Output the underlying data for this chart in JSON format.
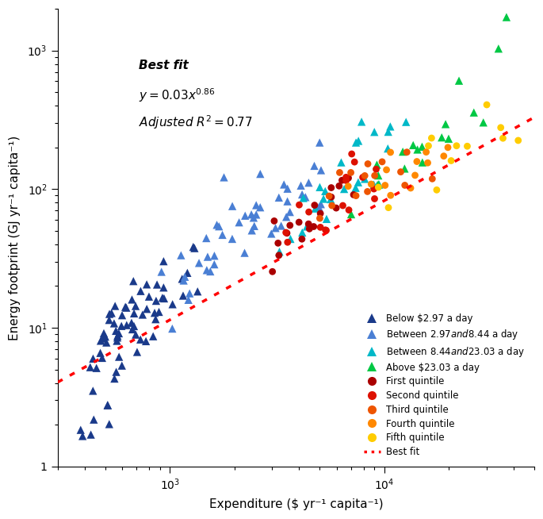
{
  "xlabel": "Expenditure ($ yr⁻¹ capita⁻¹)",
  "ylabel": "Energy footprint (GJ yr⁻¹ capita⁻¹)",
  "xlim": [
    300,
    50000
  ],
  "ylim": [
    1,
    2000
  ],
  "fit_a": 0.03,
  "fit_b": 0.86,
  "categories": {
    "dark_blue": {
      "label": "Below $2.97 a day",
      "color": "#1a3a8a",
      "marker": "^",
      "x": [
        370,
        390,
        410,
        430,
        440,
        450,
        460,
        470,
        480,
        490,
        500,
        510,
        520,
        530,
        535,
        540,
        545,
        550,
        555,
        560,
        565,
        570,
        575,
        580,
        585,
        590,
        595,
        600,
        610,
        615,
        620,
        625,
        630,
        635,
        640,
        645,
        650,
        655,
        660,
        665,
        670,
        680,
        690,
        700,
        710,
        720,
        730,
        740,
        750,
        760,
        770,
        780,
        790,
        800,
        820,
        840,
        860,
        880,
        900,
        920,
        940,
        960,
        980,
        1000,
        1050,
        1100,
        1150,
        1200,
        1250,
        1300
      ],
      "y": [
        1.5,
        1.2,
        2.2,
        1.8,
        3.5,
        2.8,
        4.2,
        3.0,
        5.0,
        3.5,
        7.0,
        5.5,
        8.5,
        6.0,
        7.5,
        9.0,
        6.5,
        8.0,
        10.0,
        7.0,
        9.5,
        11.0,
        7.5,
        10.0,
        12.0,
        8.0,
        10.5,
        13.0,
        8.5,
        11.0,
        13.5,
        9.0,
        11.5,
        6.0,
        7.0,
        8.5,
        9.5,
        12.0,
        7.5,
        10.5,
        14.0,
        9.0,
        12.5,
        11.0,
        13.0,
        10.0,
        14.5,
        12.0,
        15.0,
        11.5,
        13.5,
        16.0,
        12.5,
        17.0,
        14.0,
        16.5,
        18.0,
        15.0,
        19.0,
        17.0,
        20.0,
        16.0,
        21.0,
        18.0,
        22.0,
        25.0,
        28.0,
        20.0,
        30.0,
        35.0
      ]
    },
    "medium_blue": {
      "label": "Between $2.97 and $8.44 a day",
      "color": "#4a7fd4",
      "marker": "^",
      "x": [
        1000,
        1050,
        1100,
        1150,
        1200,
        1250,
        1300,
        1350,
        1400,
        1450,
        1500,
        1550,
        1600,
        1650,
        1700,
        1750,
        1800,
        1850,
        1900,
        1950,
        2000,
        2050,
        2100,
        2150,
        2200,
        2300,
        2400,
        2500,
        2600,
        2700,
        2800,
        2900,
        3000,
        3100,
        3200,
        3300,
        3400,
        3500,
        3600,
        3700,
        3800,
        3900,
        4000,
        4200,
        4400,
        4600,
        4800,
        5000,
        5200
      ],
      "y": [
        15.0,
        18.0,
        20.0,
        22.0,
        25.0,
        28.0,
        30.0,
        28.0,
        25.0,
        32.0,
        35.0,
        30.0,
        38.0,
        40.0,
        35.0,
        42.0,
        45.0,
        38.0,
        48.0,
        50.0,
        42.0,
        55.0,
        48.0,
        58.0,
        52.0,
        55.0,
        60.0,
        65.0,
        70.0,
        62.0,
        75.0,
        68.0,
        80.0,
        72.0,
        85.0,
        78.0,
        80.0,
        90.0,
        85.0,
        95.0,
        88.0,
        100.0,
        95.0,
        110.0,
        105.0,
        120.0,
        115.0,
        130.0,
        140.0
      ]
    },
    "teal": {
      "label": "Between $8.44 and $23.03 a day",
      "color": "#00b8c8",
      "marker": "^",
      "x": [
        3500,
        3800,
        4000,
        4200,
        4500,
        4800,
        5000,
        5200,
        5500,
        5800,
        6000,
        6200,
        6500,
        6800,
        7000,
        7200,
        7500,
        7800,
        8000,
        8500,
        9000,
        9500,
        10000,
        10500,
        11000,
        12000,
        13000
      ],
      "y": [
        50.0,
        55.0,
        65.0,
        55.0,
        70.0,
        65.0,
        80.0,
        75.0,
        85.0,
        80.0,
        90.0,
        95.0,
        100.0,
        110.0,
        120.0,
        115.0,
        130.0,
        140.0,
        150.0,
        170.0,
        185.0,
        205.0,
        220.0,
        240.0,
        265.0,
        300.0,
        350.0
      ]
    },
    "green": {
      "label": "Above $23.03 a day",
      "color": "#00c844",
      "marker": "^",
      "x": [
        7500,
        8500,
        9000,
        10000,
        11000,
        12000,
        13000,
        14000,
        15000,
        16000,
        17000,
        18000,
        20000,
        22000,
        25000,
        28000,
        32000,
        38000
      ],
      "y": [
        70.0,
        80.0,
        100.0,
        120.0,
        130.0,
        140.0,
        160.0,
        170.0,
        190.0,
        210.0,
        230.0,
        250.0,
        290.0,
        340.0,
        400.0,
        500.0,
        750.0,
        1400.0
      ]
    },
    "dark_red": {
      "label": "First quintile",
      "color": "#aa0000",
      "marker": "o",
      "x": [
        2800,
        3000,
        3200,
        3400,
        3600,
        3800,
        4000,
        4200,
        4400,
        4600,
        4800,
        5000,
        5200,
        5500,
        5800,
        6000,
        6500,
        7000,
        7500,
        8000
      ],
      "y": [
        30.0,
        35.0,
        38.0,
        42.0,
        45.0,
        50.0,
        52.0,
        55.0,
        58.0,
        60.0,
        62.0,
        65.0,
        68.0,
        72.0,
        75.0,
        80.0,
        90.0,
        100.0,
        110.0,
        120.0
      ]
    },
    "red": {
      "label": "Second quintile",
      "color": "#dd1100",
      "marker": "o",
      "x": [
        3500,
        3800,
        4000,
        4200,
        4500,
        4800,
        5000,
        5500,
        6000,
        6500,
        7000,
        7500,
        8000,
        8500,
        9000,
        9500,
        10000
      ],
      "y": [
        40.0,
        45.0,
        50.0,
        55.0,
        58.0,
        62.0,
        68.0,
        72.0,
        80.0,
        88.0,
        95.0,
        105.0,
        115.0,
        125.0,
        135.0,
        145.0,
        160.0
      ]
    },
    "orange_red": {
      "label": "Third quintile",
      "color": "#ee5500",
      "marker": "o",
      "x": [
        5000,
        5500,
        6000,
        6500,
        7000,
        7500,
        8000,
        8500,
        9000,
        9500,
        10000,
        11000,
        12000,
        13000,
        14000
      ],
      "y": [
        60.0,
        68.0,
        75.0,
        82.0,
        88.0,
        95.0,
        100.0,
        108.0,
        115.0,
        120.0,
        130.0,
        145.0,
        160.0,
        175.0,
        190.0
      ]
    },
    "orange": {
      "label": "Fourth quintile",
      "color": "#ff8800",
      "marker": "o",
      "x": [
        7000,
        8000,
        9000,
        10000,
        11000,
        12000,
        13000,
        14000,
        15000,
        16000,
        18000,
        20000,
        22000
      ],
      "y": [
        90.0,
        100.0,
        112.0,
        120.0,
        130.0,
        140.0,
        148.0,
        158.0,
        165.0,
        175.0,
        190.0,
        205.0,
        220.0
      ]
    },
    "yellow": {
      "label": "Fifth quintile",
      "color": "#ffcc00",
      "marker": "o",
      "x": [
        10000,
        12000,
        14000,
        16000,
        18000,
        20000,
        22000,
        25000,
        28000,
        32000,
        38000,
        45000
      ],
      "y": [
        110.0,
        125.0,
        140.0,
        150.0,
        160.0,
        170.0,
        180.0,
        190.0,
        200.0,
        215.0,
        240.0,
        280.0
      ]
    }
  }
}
